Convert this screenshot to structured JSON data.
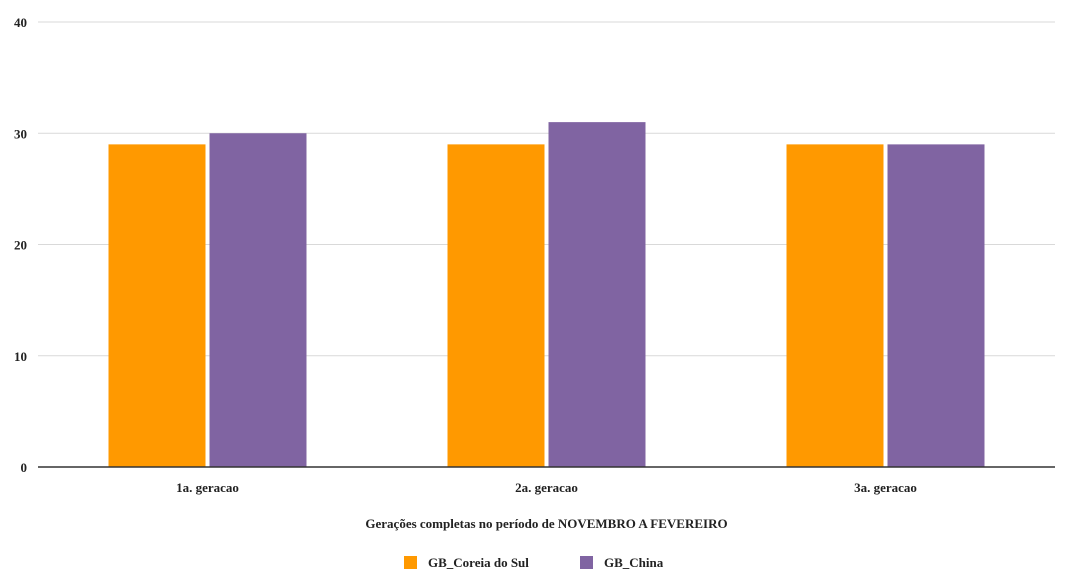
{
  "chart_data": {
    "type": "bar",
    "title": "",
    "xlabel": "Gerações completas no período de NOVEMBRO A FEVEREIRO",
    "ylabel": "",
    "ylim": [
      0,
      40
    ],
    "yticks": [
      0,
      10,
      20,
      30,
      40
    ],
    "grid": true,
    "legend_position": "bottom",
    "categories": [
      "1a. geracao",
      "2a. geracao",
      "3a. geracao"
    ],
    "series": [
      {
        "name": "GB_Coreia do Sul",
        "color": "#ff9900",
        "values": [
          29,
          29,
          29
        ]
      },
      {
        "name": "GB_China",
        "color": "#8064a2",
        "values": [
          30,
          31,
          29
        ]
      }
    ]
  }
}
